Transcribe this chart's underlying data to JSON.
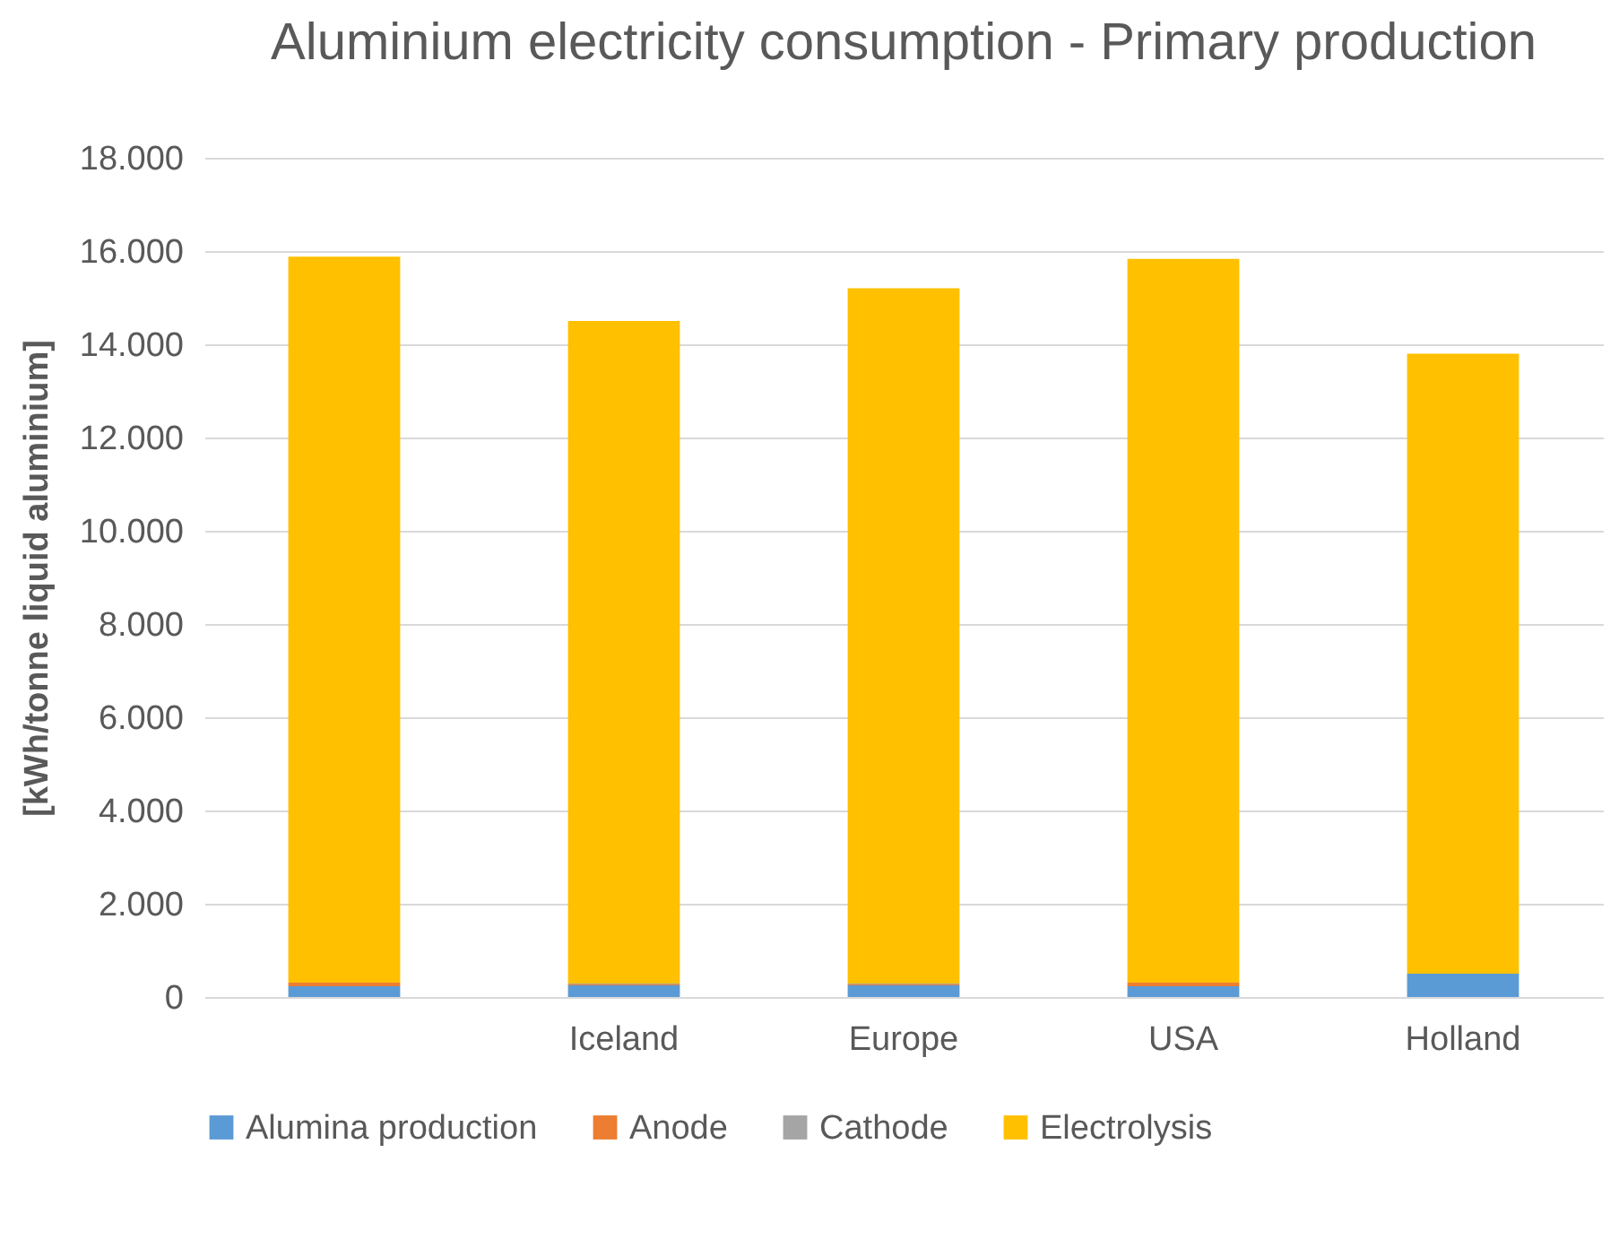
{
  "chart_data": {
    "type": "bar",
    "title": "Aluminium electricity consumption - Primary production",
    "ylabel": "[kWh/tonne liquid aluminium]",
    "categories": [
      null,
      "Iceland",
      "Europe",
      "USA",
      "Holland"
    ],
    "stacked": true,
    "series": [
      {
        "name": "Alumina production",
        "color": "#5b9bd5",
        "values": [
          230,
          250,
          250,
          230,
          500
        ]
      },
      {
        "name": "Anode",
        "color": "#ed7d31",
        "values": [
          80,
          20,
          20,
          80,
          0
        ]
      },
      {
        "name": "Cathode",
        "color": "#a5a5a5",
        "values": [
          null,
          20,
          20,
          null,
          0
        ]
      },
      {
        "name": "Electrolysis",
        "color": "#ffc000",
        "values": [
          15570,
          14210,
          14910,
          15520,
          13300
        ]
      }
    ],
    "ylim": [
      0,
      18000
    ],
    "yticks": [
      0,
      {
        "value": 2000,
        "label": "2.000"
      },
      {
        "value": 4000,
        "label": "4.000"
      },
      {
        "value": 6000,
        "label": "6.000"
      },
      {
        "value": 8000,
        "label": "8.000"
      },
      {
        "value": 10000,
        "label": "10.000"
      },
      {
        "value": 12000,
        "label": "12.000"
      },
      {
        "value": 14000,
        "label": "14.000"
      },
      {
        "value": 16000,
        "label": "16.000"
      },
      {
        "value": 18000,
        "label": "18.000"
      }
    ],
    "grid": "y",
    "legend": "bottom"
  }
}
